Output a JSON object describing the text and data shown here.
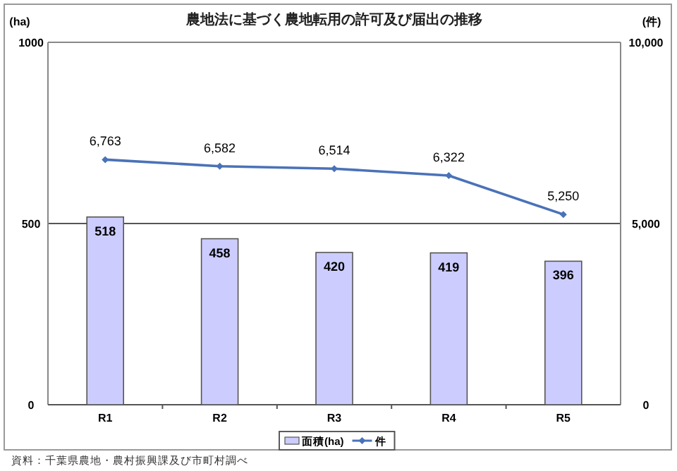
{
  "chart_data": {
    "type": "bar",
    "title": "農地法に基づく農地転用の許可及び届出の推移",
    "categories": [
      "R1",
      "R2",
      "R3",
      "R4",
      "R5"
    ],
    "series": [
      {
        "name": "面積(ha)",
        "color": "#ccccff",
        "values": [
          518,
          458,
          420,
          419,
          396
        ]
      },
      {
        "name": "件",
        "type": "line",
        "axis": "y2",
        "color": "#4a72b8",
        "values": [
          6763,
          6582,
          6514,
          6322,
          5250
        ],
        "value_labels": [
          "6,763",
          "6,582",
          "6,514",
          "6,322",
          "5,250"
        ]
      }
    ],
    "ylabel": "(ha)",
    "y2label": "(件)",
    "ylim": [
      0,
      1000
    ],
    "yticks": [
      0,
      500,
      1000
    ],
    "y2lim": [
      0,
      10000
    ],
    "y2ticks": [
      0,
      {
        "value": 5000,
        "label": "5,000"
      },
      {
        "value": 10000,
        "label": "10,000"
      }
    ],
    "data_labels": true,
    "grid": "y",
    "legend": "bottom",
    "marker": "diamond",
    "line_style": "solid",
    "annotations": [
      "資料：千葉県農地・農村振興課及び市町村調べ"
    ]
  }
}
